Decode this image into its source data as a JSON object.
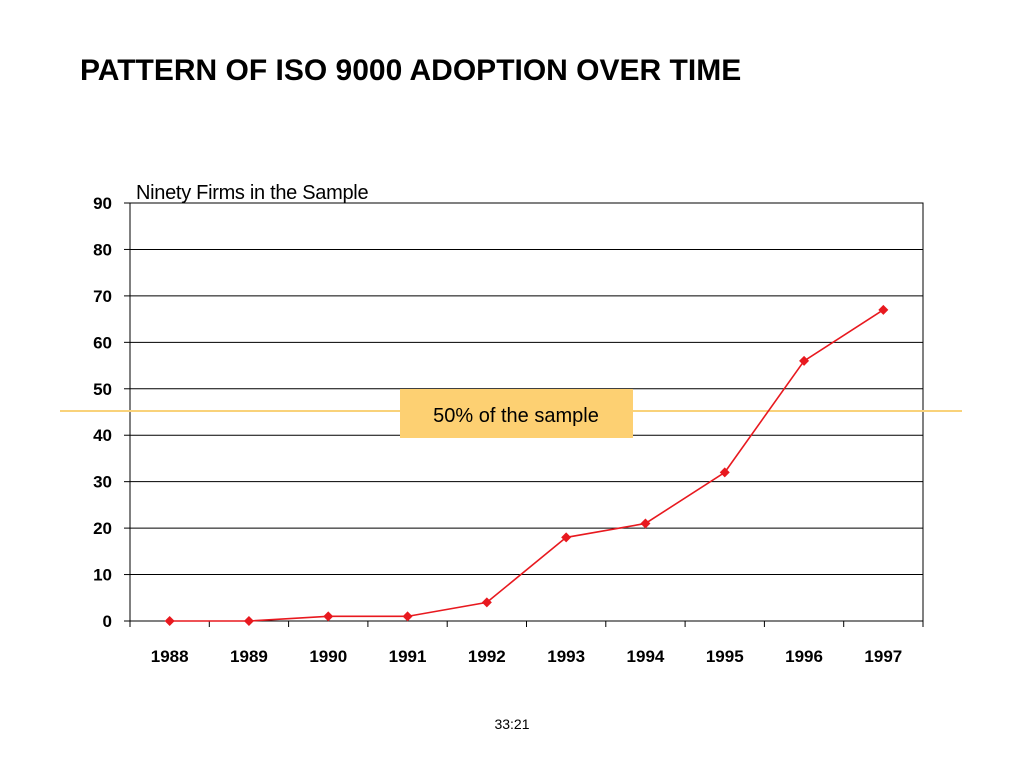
{
  "slide": {
    "title": "PATTERN OF ISO 9000 ADOPTION OVER TIME",
    "footer": "33:21"
  },
  "chart_data": {
    "type": "line",
    "title": "Ninety Firms in the Sample",
    "xlabel": "",
    "ylabel": "",
    "categories": [
      "1988",
      "1989",
      "1990",
      "1991",
      "1992",
      "1993",
      "1994",
      "1995",
      "1996",
      "1997"
    ],
    "series": [
      {
        "values": [
          0,
          0,
          1,
          1,
          4,
          18,
          21,
          32,
          56,
          67
        ],
        "color": "#e8191f"
      }
    ],
    "ylim": [
      0,
      90
    ],
    "yticks": [
      0,
      10,
      20,
      30,
      40,
      50,
      60,
      70,
      80,
      90
    ],
    "grid": true,
    "annotation": {
      "text": "50% of the sample",
      "value": 45,
      "line_color": "#f9d27a",
      "box_color": "#fdd072"
    }
  }
}
